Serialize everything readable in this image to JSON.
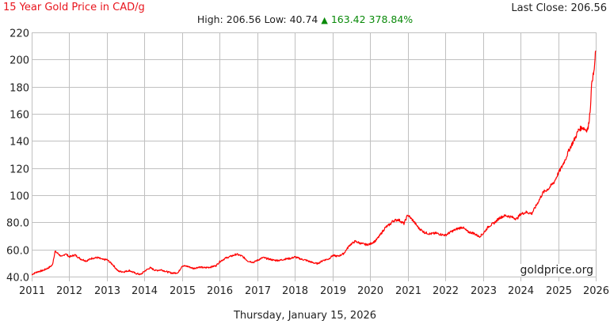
{
  "header": {
    "title": "15 Year Gold Price in CAD/g",
    "last_close_label": "Last Close: 206.56",
    "high_label": "High: 206.56",
    "low_label": "Low: 40.74",
    "change_arrow": "▲",
    "change_value": "163.42",
    "change_pct": "378.84%"
  },
  "colors": {
    "title": "#e8141c",
    "line": "#ff0000",
    "up": "#0a8a0a",
    "grid": "#c0c0c0"
  },
  "watermark": "goldprice.org",
  "footer": {
    "date": "Thursday, January 15, 2026"
  },
  "chart_data": {
    "type": "line",
    "title": "15 Year Gold Price in CAD/g",
    "xlabel": "",
    "ylabel": "",
    "ylim": [
      40,
      220
    ],
    "xlim": [
      2011,
      2026
    ],
    "grid": true,
    "legend": null,
    "yticks": [
      "40.0",
      "60.0",
      "80.0",
      "100",
      "120",
      "140",
      "160",
      "180",
      "200",
      "220"
    ],
    "xticks": [
      "2011",
      "2012",
      "2013",
      "2014",
      "2015",
      "2016",
      "2017",
      "2018",
      "2019",
      "2020",
      "2021",
      "2022",
      "2023",
      "2024",
      "2025",
      "2026"
    ],
    "summary": {
      "high": 206.56,
      "low": 40.74,
      "change": 163.42,
      "change_pct": 378.84,
      "last_close": 206.56
    },
    "series": [
      {
        "name": "Gold Price CAD/g",
        "x": [
          2011.0,
          2011.15,
          2011.3,
          2011.45,
          2011.55,
          2011.62,
          2011.7,
          2011.8,
          2011.9,
          2012.0,
          2012.15,
          2012.3,
          2012.45,
          2012.6,
          2012.75,
          2012.9,
          2013.0,
          2013.15,
          2013.3,
          2013.45,
          2013.6,
          2013.75,
          2013.9,
          2014.0,
          2014.15,
          2014.3,
          2014.45,
          2014.6,
          2014.75,
          2014.9,
          2015.0,
          2015.15,
          2015.3,
          2015.45,
          2015.6,
          2015.75,
          2015.9,
          2016.0,
          2016.15,
          2016.3,
          2016.45,
          2016.6,
          2016.75,
          2016.9,
          2017.0,
          2017.15,
          2017.3,
          2017.45,
          2017.6,
          2017.75,
          2017.9,
          2018.0,
          2018.15,
          2018.3,
          2018.45,
          2018.6,
          2018.75,
          2018.9,
          2019.0,
          2019.15,
          2019.3,
          2019.45,
          2019.6,
          2019.75,
          2019.9,
          2020.0,
          2020.15,
          2020.25,
          2020.4,
          2020.55,
          2020.6,
          2020.75,
          2020.9,
          2021.0,
          2021.15,
          2021.3,
          2021.45,
          2021.6,
          2021.75,
          2021.9,
          2022.0,
          2022.15,
          2022.3,
          2022.45,
          2022.6,
          2022.75,
          2022.9,
          2023.0,
          2023.15,
          2023.3,
          2023.45,
          2023.6,
          2023.75,
          2023.9,
          2024.0,
          2024.15,
          2024.3,
          2024.45,
          2024.6,
          2024.75,
          2024.9,
          2025.0,
          2025.1,
          2025.2,
          2025.3,
          2025.45,
          2025.55,
          2025.65,
          2025.75,
          2025.8,
          2025.85,
          2025.9,
          2025.95,
          2026.0
        ],
        "values": [
          41.5,
          43.5,
          44.5,
          46.5,
          48.5,
          58.5,
          57.0,
          54.5,
          57.0,
          54.5,
          56.0,
          53.0,
          51.5,
          53.5,
          54.0,
          52.5,
          52.5,
          49.0,
          44.0,
          43.5,
          44.5,
          42.5,
          41.5,
          44.0,
          46.5,
          44.5,
          45.0,
          43.5,
          42.5,
          43.0,
          48.0,
          47.5,
          46.0,
          47.0,
          46.5,
          47.0,
          48.0,
          51.0,
          53.5,
          55.0,
          56.5,
          55.0,
          51.5,
          50.5,
          52.0,
          54.0,
          53.0,
          52.0,
          52.0,
          53.0,
          53.5,
          54.5,
          53.0,
          52.0,
          50.5,
          49.5,
          52.0,
          53.0,
          55.5,
          55.0,
          57.0,
          63.0,
          66.0,
          64.5,
          63.5,
          64.0,
          66.5,
          70.0,
          76.0,
          79.0,
          81.0,
          82.0,
          79.0,
          85.5,
          81.0,
          75.5,
          72.5,
          71.5,
          72.0,
          71.0,
          70.5,
          73.0,
          75.0,
          76.5,
          73.0,
          72.0,
          69.5,
          71.5,
          77.0,
          79.5,
          83.5,
          85.0,
          84.0,
          82.5,
          86.0,
          87.5,
          86.5,
          94.0,
          102.0,
          105.0,
          110.0,
          116.0,
          121.0,
          127.0,
          134.0,
          142.0,
          148.5,
          150.0,
          148.0,
          149.5,
          162.0,
          185.0,
          190.0,
          206.56
        ]
      }
    ]
  }
}
